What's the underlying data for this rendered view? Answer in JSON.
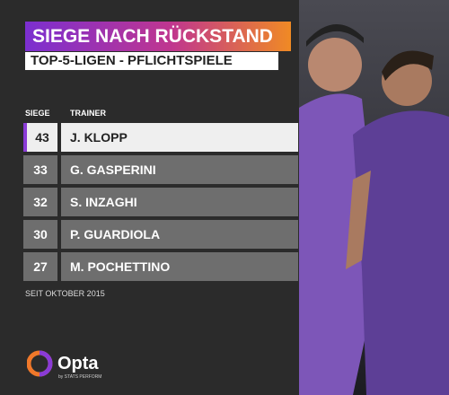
{
  "header": {
    "title": "SIEGE NACH RÜCKSTAND",
    "subtitle": "TOP-5-LIGEN - PFLICHTSPIELE"
  },
  "table": {
    "columns": [
      "SIEGE",
      "TRAINER"
    ],
    "rows": [
      [
        "43",
        "J. KLOPP"
      ],
      [
        "33",
        "G. GASPERINI"
      ],
      [
        "32",
        "S. INZAGHI"
      ],
      [
        "30",
        "P. GUARDIOLA"
      ],
      [
        "27",
        "M. POCHETTINO"
      ]
    ]
  },
  "footnote": "SEIT OKTOBER 2015",
  "brand": {
    "name": "Opta",
    "tagline": "by STATS PERFORM"
  }
}
